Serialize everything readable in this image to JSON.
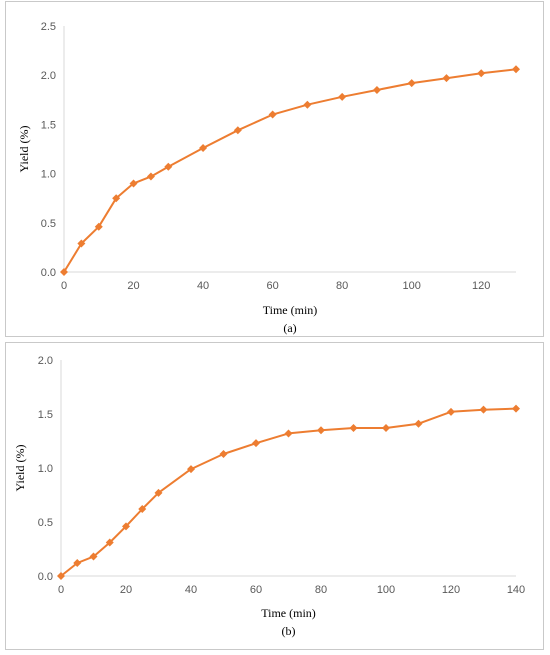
{
  "chart_data": [
    {
      "type": "line",
      "panel_label": "(a)",
      "xlabel": "Time (min)",
      "ylabel": "Yield (%)",
      "xlim": [
        0,
        130
      ],
      "ylim": [
        0,
        2.5
      ],
      "xticks": [
        "0",
        "20",
        "40",
        "60",
        "80",
        "100",
        "120"
      ],
      "yticks": [
        "0.0",
        "0.5",
        "1.0",
        "1.5",
        "2.0",
        "2.5"
      ],
      "grid": false,
      "color": "#ED7D31",
      "marker": "diamond",
      "series": [
        {
          "x": [
            0,
            5,
            10,
            15,
            20,
            25,
            30,
            40,
            50,
            60,
            70,
            80,
            90,
            100,
            110,
            120,
            130
          ],
          "y": [
            0.0,
            0.29,
            0.46,
            0.75,
            0.9,
            0.97,
            1.07,
            1.26,
            1.44,
            1.6,
            1.7,
            1.78,
            1.85,
            1.92,
            1.97,
            2.02,
            2.06
          ]
        }
      ]
    },
    {
      "type": "line",
      "panel_label": "(b)",
      "xlabel": "Time (min)",
      "ylabel": "Yield (%)",
      "xlim": [
        0,
        140
      ],
      "ylim": [
        0,
        2.0
      ],
      "xticks": [
        "0",
        "20",
        "40",
        "60",
        "80",
        "100",
        "120",
        "140"
      ],
      "yticks": [
        "0.0",
        "0.5",
        "1.0",
        "1.5",
        "2.0"
      ],
      "grid": false,
      "color": "#ED7D31",
      "marker": "diamond",
      "series": [
        {
          "x": [
            0,
            5,
            10,
            15,
            20,
            25,
            30,
            40,
            50,
            60,
            70,
            80,
            90,
            100,
            110,
            120,
            130,
            140
          ],
          "y": [
            0.0,
            0.12,
            0.18,
            0.31,
            0.46,
            0.62,
            0.77,
            0.99,
            1.13,
            1.23,
            1.32,
            1.35,
            1.37,
            1.37,
            1.41,
            1.52,
            1.54,
            1.55
          ]
        }
      ]
    }
  ]
}
